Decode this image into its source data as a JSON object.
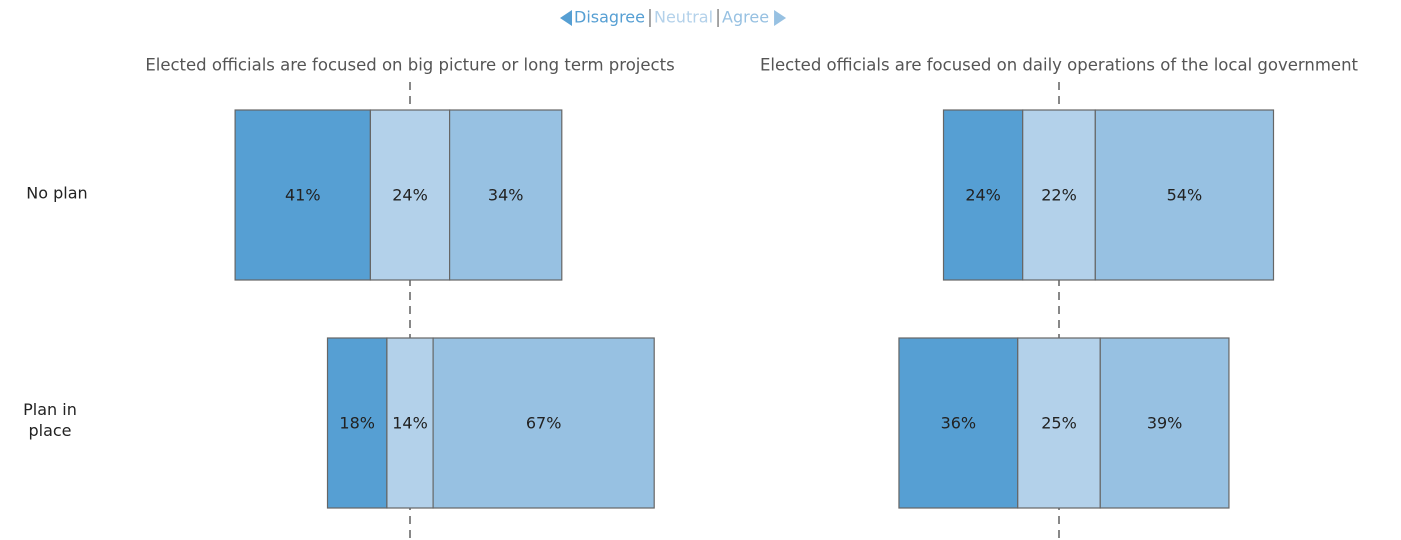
{
  "chart_data": {
    "type": "diverging_bar",
    "categories": [
      "No plan",
      "Plan in place"
    ],
    "series": [
      {
        "name": "Disagree",
        "color": "#569fd3"
      },
      {
        "name": "Neutral",
        "color": "#b3d1ea"
      },
      {
        "name": "Agree",
        "color": "#97c1e2"
      }
    ],
    "panels": [
      {
        "title": "Elected officials are focused on big picture or long term projects",
        "series": [
          {
            "values": [
              41,
              18
            ],
            "value_labels": [
              "41%",
              "18%"
            ]
          },
          {
            "values": [
              24,
              14
            ],
            "value_labels": [
              "24%",
              "14%"
            ]
          },
          {
            "values": [
              34,
              67
            ],
            "value_labels": [
              "34%",
              "67%"
            ]
          }
        ]
      },
      {
        "title": "Elected officials are focused on daily operations of the local government",
        "series": [
          {
            "values": [
              24,
              36
            ],
            "value_labels": [
              "24%",
              "36%"
            ]
          },
          {
            "values": [
              22,
              25
            ],
            "value_labels": [
              "22%",
              "25%"
            ]
          },
          {
            "values": [
              54,
              39
            ],
            "value_labels": [
              "54%",
              "39%"
            ]
          }
        ]
      }
    ]
  }
}
